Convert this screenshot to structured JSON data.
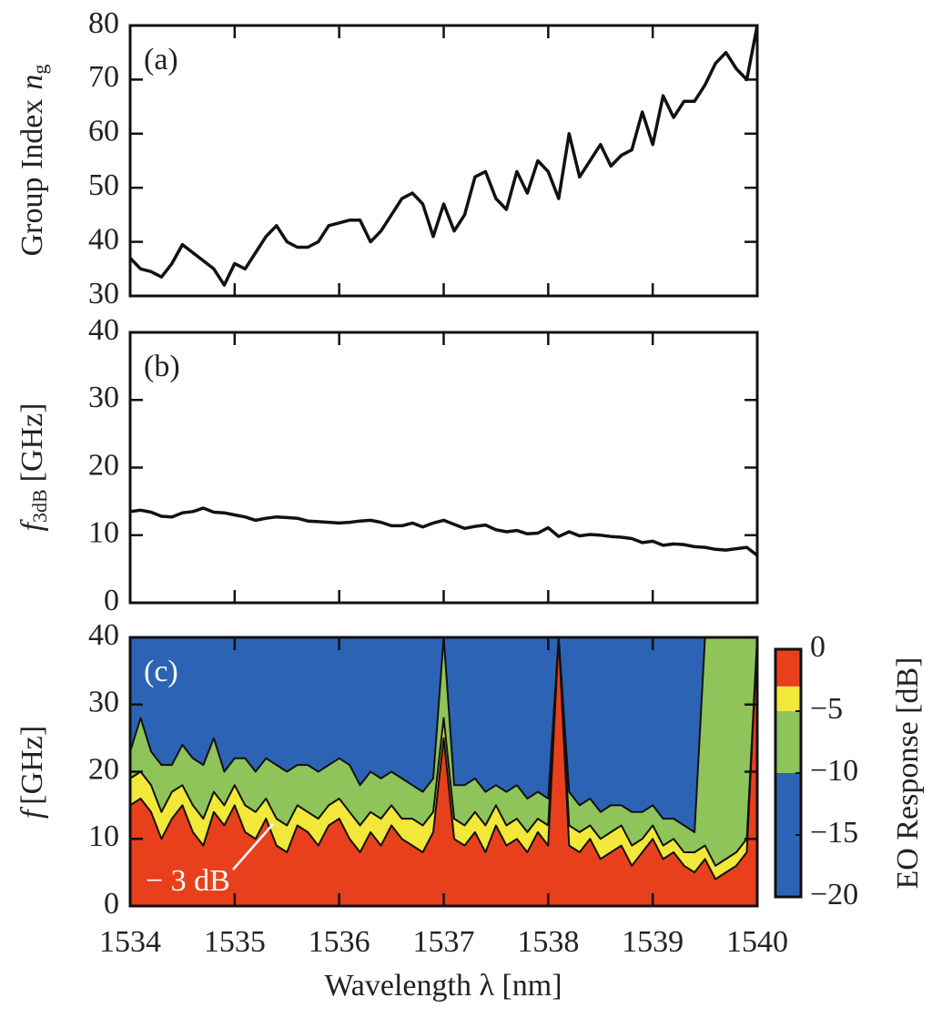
{
  "chart_data": [
    {
      "type": "line",
      "panel_label": "(a)",
      "ylabel": {
        "text": "Group Index",
        "variable": "n",
        "subscript": "g"
      },
      "x": [
        1534,
        1534.1,
        1534.2,
        1534.3,
        1534.4,
        1534.5,
        1534.6,
        1534.7,
        1534.8,
        1534.9,
        1535,
        1535.1,
        1535.2,
        1535.3,
        1535.4,
        1535.5,
        1535.6,
        1535.7,
        1535.8,
        1535.9,
        1536,
        1536.1,
        1536.2,
        1536.3,
        1536.4,
        1536.5,
        1536.6,
        1536.7,
        1536.8,
        1536.9,
        1537,
        1537.1,
        1537.2,
        1537.3,
        1537.4,
        1537.5,
        1537.6,
        1537.7,
        1537.8,
        1537.9,
        1538,
        1538.1,
        1538.2,
        1538.3,
        1538.4,
        1538.5,
        1538.6,
        1538.7,
        1538.8,
        1538.9,
        1539,
        1539.1,
        1539.2,
        1539.3,
        1539.4,
        1539.5,
        1539.6,
        1539.7,
        1539.8,
        1539.9,
        1540
      ],
      "values": [
        37,
        35,
        34.5,
        33.5,
        36,
        39.5,
        38,
        36.5,
        35,
        32,
        36,
        35,
        38,
        41,
        43,
        40,
        39,
        39,
        40,
        43,
        43.5,
        44,
        44,
        40,
        42,
        45,
        48,
        49,
        47,
        41,
        47,
        42,
        45,
        52,
        53,
        48,
        46,
        53,
        49,
        55,
        53,
        48,
        60,
        52,
        55,
        58,
        54,
        56,
        57,
        64,
        58,
        67,
        63,
        66,
        66,
        69,
        73,
        75,
        72,
        70,
        80
      ],
      "color": "#111111",
      "xlim": [
        1534,
        1540
      ],
      "xticks": [
        1534,
        1535,
        1536,
        1537,
        1538,
        1539,
        1540
      ],
      "ylim": [
        30,
        80
      ],
      "yticks": [
        30,
        40,
        50,
        60,
        70,
        80
      ]
    },
    {
      "type": "line",
      "panel_label": "(b)",
      "ylabel": {
        "variable": "f",
        "subscript": "3dB",
        "unit": "[GHz]"
      },
      "x": [
        1534,
        1534.1,
        1534.2,
        1534.3,
        1534.4,
        1534.5,
        1534.6,
        1534.7,
        1534.8,
        1534.9,
        1535,
        1535.1,
        1535.2,
        1535.3,
        1535.4,
        1535.5,
        1535.6,
        1535.7,
        1535.8,
        1535.9,
        1536,
        1536.1,
        1536.2,
        1536.3,
        1536.4,
        1536.5,
        1536.6,
        1536.7,
        1536.8,
        1536.9,
        1537,
        1537.1,
        1537.2,
        1537.3,
        1537.4,
        1537.5,
        1537.6,
        1537.7,
        1537.8,
        1537.9,
        1538,
        1538.1,
        1538.2,
        1538.3,
        1538.4,
        1538.5,
        1538.6,
        1538.7,
        1538.8,
        1538.9,
        1539,
        1539.1,
        1539.2,
        1539.3,
        1539.4,
        1539.5,
        1539.6,
        1539.7,
        1539.8,
        1539.9,
        1540
      ],
      "values": [
        13.5,
        13.7,
        13.4,
        12.8,
        12.7,
        13.3,
        13.5,
        14.0,
        13.4,
        13.3,
        13.0,
        12.7,
        12.2,
        12.5,
        12.7,
        12.6,
        12.5,
        12.1,
        12.0,
        11.9,
        11.8,
        11.9,
        12.1,
        12.2,
        11.9,
        11.4,
        11.4,
        11.8,
        11.2,
        11.8,
        12.2,
        11.6,
        11.0,
        11.3,
        11.5,
        10.8,
        10.5,
        10.7,
        10.2,
        10.3,
        11.1,
        9.8,
        10.5,
        9.9,
        10.1,
        10.0,
        9.8,
        9.7,
        9.5,
        8.9,
        9.1,
        8.5,
        8.7,
        8.6,
        8.3,
        8.2,
        7.9,
        7.8,
        8.0,
        8.2,
        7.0
      ],
      "color": "#111111",
      "xlim": [
        1534,
        1540
      ],
      "xticks": [
        1534,
        1535,
        1536,
        1537,
        1538,
        1539,
        1540
      ],
      "ylim": [
        0,
        40
      ],
      "yticks": [
        0,
        10,
        20,
        30,
        40
      ]
    },
    {
      "type": "contour",
      "panel_label": "(c)",
      "ylabel": {
        "variable": "f",
        "unit": "[GHz]"
      },
      "xlabel": "Wavelength λ [nm]",
      "annotation": "− 3 dB",
      "colorbar_label": "EO Response [dB]",
      "x": [
        1534,
        1534.1,
        1534.2,
        1534.3,
        1534.4,
        1534.5,
        1534.6,
        1534.7,
        1534.8,
        1534.9,
        1535,
        1535.1,
        1535.2,
        1535.3,
        1535.4,
        1535.5,
        1535.6,
        1535.7,
        1535.8,
        1535.9,
        1536,
        1536.1,
        1536.2,
        1536.3,
        1536.4,
        1536.5,
        1536.6,
        1536.7,
        1536.8,
        1536.9,
        1537,
        1537.1,
        1537.2,
        1537.3,
        1537.4,
        1537.5,
        1537.6,
        1537.7,
        1537.8,
        1537.9,
        1538,
        1538.1,
        1538.2,
        1538.3,
        1538.4,
        1538.5,
        1538.6,
        1538.7,
        1538.8,
        1538.9,
        1539,
        1539.1,
        1539.2,
        1539.3,
        1539.4,
        1539.5,
        1539.6,
        1539.7,
        1539.8,
        1539.9,
        1540
      ],
      "background_color": "#2d63b4",
      "series": [
        {
          "level": -10,
          "color": "#8fc45a",
          "values": [
            23,
            28,
            23,
            21,
            21,
            24,
            22,
            21,
            25,
            20,
            22,
            22,
            20,
            22,
            21,
            20,
            21,
            21,
            20,
            21,
            22,
            21,
            18,
            20,
            19,
            20,
            19,
            18,
            17,
            19,
            40,
            18,
            18,
            19,
            17,
            18,
            17,
            18,
            16,
            17,
            16,
            40,
            17,
            15,
            16,
            14,
            15,
            15,
            14,
            14,
            15,
            13,
            13,
            12,
            11,
            40,
            40,
            40,
            40,
            40,
            40
          ]
        },
        {
          "level": -5,
          "color": "#f2e83a",
          "values": [
            19,
            20,
            18,
            14,
            17,
            18,
            15,
            13,
            17,
            15,
            18,
            15,
            14,
            16,
            13,
            12,
            15,
            14,
            13,
            15,
            16,
            14,
            12,
            14,
            13,
            15,
            13,
            13,
            12,
            14,
            28,
            13,
            12,
            14,
            12,
            15,
            12,
            13,
            11,
            13,
            12,
            40,
            12,
            11,
            12,
            10,
            11,
            12,
            9,
            10,
            12,
            9,
            10,
            8,
            8,
            9,
            6,
            7,
            8,
            10,
            40
          ]
        },
        {
          "level": -3,
          "color": "#e8401c",
          "values": [
            15,
            16,
            14,
            10,
            13,
            15,
            11,
            9,
            14,
            12,
            15,
            11,
            10,
            13,
            9,
            8,
            12,
            11,
            9,
            12,
            13,
            10,
            8,
            11,
            9,
            12,
            10,
            9,
            8,
            11,
            25,
            10,
            9,
            11,
            8,
            12,
            9,
            10,
            8,
            11,
            9,
            40,
            9,
            8,
            10,
            7,
            8,
            9,
            6,
            8,
            10,
            7,
            8,
            6,
            5,
            7,
            4,
            5,
            6,
            8,
            40
          ]
        }
      ],
      "clim": [
        -20,
        0
      ],
      "cticks": [
        0,
        {
          "value": -5,
          "label": "−5"
        },
        {
          "value": -10,
          "label": "−10"
        },
        {
          "value": -15,
          "label": "−15"
        },
        {
          "value": -20,
          "label": "−20"
        }
      ],
      "xlim": [
        1534,
        1540
      ],
      "xticks": [
        1534,
        1535,
        1536,
        1537,
        1538,
        1539,
        1540
      ],
      "ylim": [
        0,
        40
      ],
      "yticks": [
        0,
        10,
        20,
        30,
        40
      ]
    }
  ]
}
